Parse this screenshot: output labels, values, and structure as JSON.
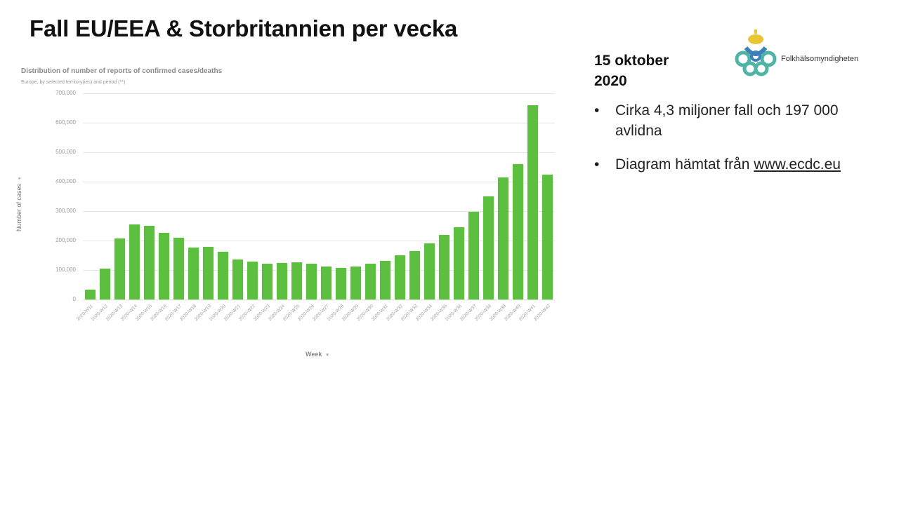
{
  "slide": {
    "title": "Fall EU/EEA & Storbritannien per vecka",
    "date_line1": "15 oktober",
    "date_line2": "2020",
    "bullets": [
      {
        "text": "Cirka 4,3 miljoner fall och 197 000 avlidna"
      },
      {
        "text_prefix": "Diagram hämtat från ",
        "link": "www.ecdc.eu"
      }
    ],
    "bullet_glyph": "•",
    "logo_text": "Folkhälsomyndigheten"
  },
  "colors": {
    "bar": "#5cbf40",
    "grid": "#e4e4e4",
    "logo_teal": "#4fb3a5",
    "logo_blue": "#3d7fb8",
    "logo_crown": "#e8c634"
  },
  "chart_data": {
    "type": "bar",
    "title": "Distribution of number of reports of confirmed cases/deaths",
    "subtitle": "Europe, by selected territory(ies) and period (**)",
    "xlabel": "Week",
    "ylabel": "Number of cases",
    "ylim": [
      0,
      700000
    ],
    "yticks": [
      "0",
      "100,000",
      "200,000",
      "300,000",
      "400,000",
      "500,000",
      "600,000",
      "700,000"
    ],
    "grid": true,
    "legend": null,
    "categories": [
      "2020-W11",
      "2020-W12",
      "2020-W13",
      "2020-W14",
      "2020-W15",
      "2020-W16",
      "2020-W17",
      "2020-W18",
      "2020-W19",
      "2020-W20",
      "2020-W21",
      "2020-W22",
      "2020-W23",
      "2020-W24",
      "2020-W25",
      "2020-W26",
      "2020-W27",
      "2020-W28",
      "2020-W29",
      "2020-W30",
      "2020-W31",
      "2020-W32",
      "2020-W33",
      "2020-W34",
      "2020-W35",
      "2020-W36",
      "2020-W37",
      "2020-W38",
      "2020-W39",
      "2020-W40",
      "2020-W41",
      "2020-W42"
    ],
    "values": [
      33000,
      105000,
      207000,
      255000,
      250000,
      226000,
      210000,
      176000,
      179000,
      162000,
      136000,
      129000,
      121000,
      124000,
      126000,
      121000,
      112000,
      107000,
      112000,
      121000,
      131000,
      150000,
      164000,
      190000,
      219000,
      245000,
      298000,
      350000,
      414000,
      460000,
      660000,
      424000
    ]
  }
}
